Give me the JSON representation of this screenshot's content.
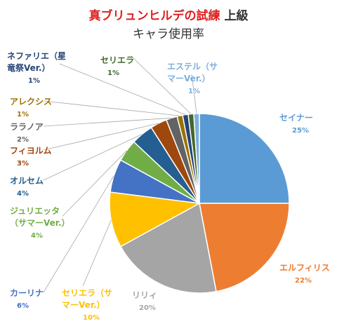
{
  "chart_data": {
    "type": "pie",
    "title_red": "真ブリュンヒルデの試練",
    "title_dark": "上級",
    "subtitle": "キャラ使用率",
    "slices": [
      {
        "lines": [
          "セイナー"
        ],
        "value": 25,
        "value_label": "25%",
        "color": "#5b9bd5"
      },
      {
        "lines": [
          "エルフィリス"
        ],
        "value": 22,
        "value_label": "22%",
        "color": "#ed7d31"
      },
      {
        "lines": [
          "リリィ"
        ],
        "value": 20,
        "value_label": "20%",
        "color": "#a5a5a5"
      },
      {
        "lines": [
          "セリエラ（サ",
          "マーVer.）"
        ],
        "value": 10,
        "value_label": "10%",
        "color": "#ffc000"
      },
      {
        "lines": [
          "カーリナ"
        ],
        "value": 6,
        "value_label": "6%",
        "color": "#4472c4"
      },
      {
        "lines": [
          "ジュリエッタ",
          "（サマーVer.）"
        ],
        "value": 4,
        "value_label": "4%",
        "color": "#70ad47"
      },
      {
        "lines": [
          "オルセム"
        ],
        "value": 4,
        "value_label": "4%",
        "color": "#255e91"
      },
      {
        "lines": [
          "フィヨルム"
        ],
        "value": 3,
        "value_label": "3%",
        "color": "#9e480e"
      },
      {
        "lines": [
          "ララノア"
        ],
        "value": 2,
        "value_label": "2%",
        "color": "#636363"
      },
      {
        "lines": [
          "アレクシス"
        ],
        "value": 1,
        "value_label": "1%",
        "color": "#997300"
      },
      {
        "lines": [
          "ネファリエ（星",
          "竜祭Ver.）"
        ],
        "value": 1,
        "value_label": "1%",
        "color": "#264478"
      },
      {
        "lines": [
          "セリエラ"
        ],
        "value": 1,
        "value_label": "1%",
        "color": "#43682b"
      },
      {
        "lines": [
          "エステル（サ",
          "マーVer.）"
        ],
        "value": 1,
        "value_label": "1%",
        "color": "#7cafdd"
      }
    ],
    "legend": "none"
  }
}
